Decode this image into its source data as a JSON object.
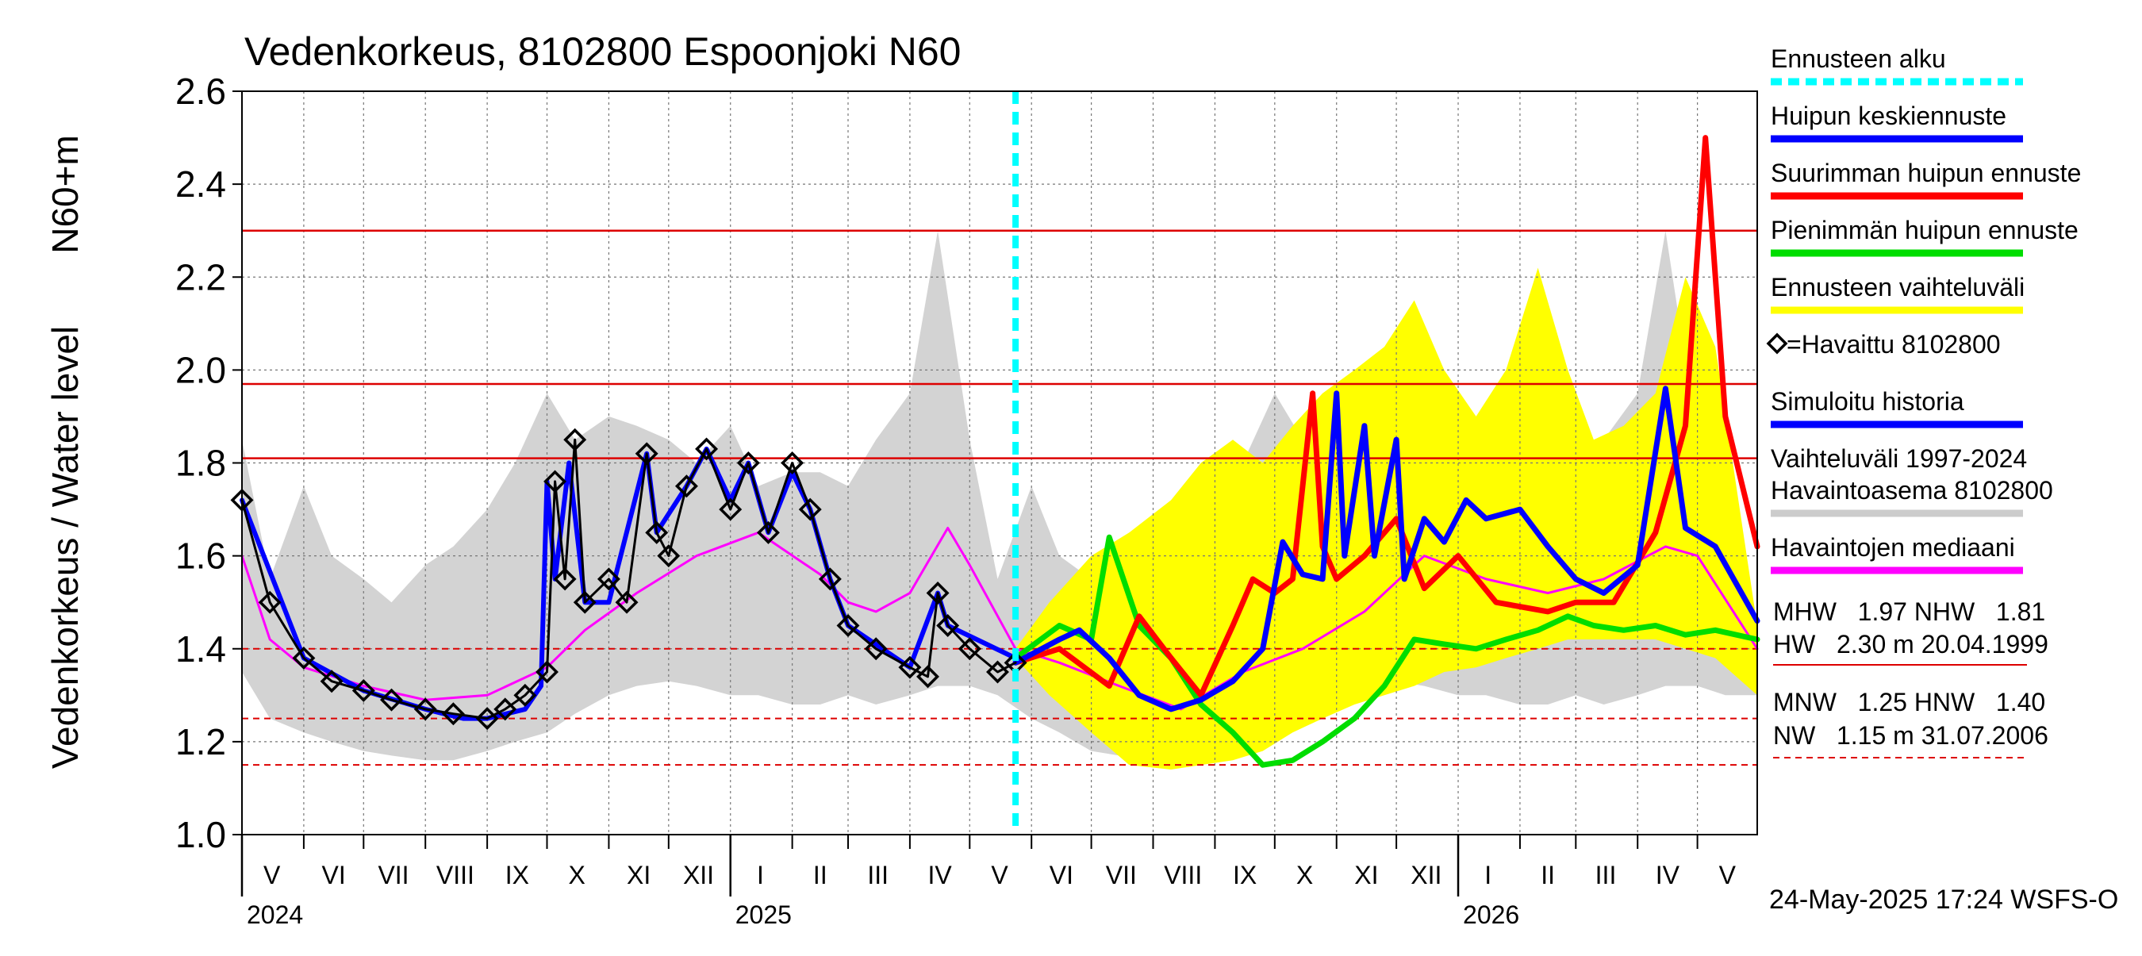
{
  "chart_data": {
    "type": "line",
    "title": "Vedenkorkeus, 8102800 Espoonjoki N60",
    "ylabel_left": "Vedenkorkeus / Water level",
    "ylabel_right": "N60+m",
    "ylim": [
      1.0,
      2.6
    ],
    "yticks": [
      "1.0",
      "1.2",
      "1.4",
      "1.6",
      "1.8",
      "2.0",
      "2.2",
      "2.4",
      "2.6"
    ],
    "x_range": [
      "2024-05-01",
      "2026-05-31"
    ],
    "grid": true,
    "month_labels": [
      {
        "label": "V",
        "date": "2024-05-16"
      },
      {
        "label": "VI",
        "date": "2024-06-16"
      },
      {
        "label": "VII",
        "date": "2024-07-16"
      },
      {
        "label": "VIII",
        "date": "2024-08-16"
      },
      {
        "label": "IX",
        "date": "2024-09-16"
      },
      {
        "label": "X",
        "date": "2024-10-16"
      },
      {
        "label": "XI",
        "date": "2024-11-16"
      },
      {
        "label": "XII",
        "date": "2024-12-16"
      },
      {
        "label": "I",
        "date": "2025-01-16"
      },
      {
        "label": "II",
        "date": "2025-02-15"
      },
      {
        "label": "III",
        "date": "2025-03-16"
      },
      {
        "label": "IV",
        "date": "2025-04-16"
      },
      {
        "label": "V",
        "date": "2025-05-16"
      },
      {
        "label": "VI",
        "date": "2025-06-16"
      },
      {
        "label": "VII",
        "date": "2025-07-16"
      },
      {
        "label": "VIII",
        "date": "2025-08-16"
      },
      {
        "label": "IX",
        "date": "2025-09-16"
      },
      {
        "label": "X",
        "date": "2025-10-16"
      },
      {
        "label": "XI",
        "date": "2025-11-16"
      },
      {
        "label": "XII",
        "date": "2025-12-16"
      },
      {
        "label": "I",
        "date": "2026-01-16"
      },
      {
        "label": "II",
        "date": "2026-02-15"
      },
      {
        "label": "III",
        "date": "2026-03-16"
      },
      {
        "label": "IV",
        "date": "2026-04-16"
      },
      {
        "label": "V",
        "date": "2026-05-16"
      }
    ],
    "year_labels": [
      {
        "label": "2024",
        "date": "2024-05-01"
      },
      {
        "label": "2025",
        "date": "2025-01-01"
      },
      {
        "label": "2026",
        "date": "2026-01-01"
      }
    ],
    "forecast_start": "2025-05-24",
    "reference_lines": [
      {
        "value": 2.3,
        "style": "solid"
      },
      {
        "value": 1.97,
        "style": "solid"
      },
      {
        "value": 1.81,
        "style": "solid"
      },
      {
        "value": 1.4,
        "style": "dashed"
      },
      {
        "value": 1.25,
        "style": "dashed"
      },
      {
        "value": 1.15,
        "style": "dashed"
      }
    ],
    "historical_range": {
      "x": [
        "2024-05-01",
        "2024-05-15",
        "2024-06-01",
        "2024-06-15",
        "2024-07-01",
        "2024-07-15",
        "2024-08-01",
        "2024-08-15",
        "2024-09-01",
        "2024-09-15",
        "2024-10-01",
        "2024-10-15",
        "2024-11-01",
        "2024-11-15",
        "2024-12-01",
        "2024-12-15",
        "2025-01-01",
        "2025-01-15",
        "2025-02-01",
        "2025-02-15",
        "2025-03-01",
        "2025-03-15",
        "2025-04-01",
        "2025-04-15",
        "2025-05-01",
        "2025-05-15",
        "2025-06-01",
        "2025-06-15",
        "2025-07-01",
        "2025-07-15",
        "2025-08-01",
        "2025-08-15",
        "2025-09-01",
        "2025-09-15",
        "2025-10-01",
        "2025-10-15",
        "2025-11-01",
        "2025-11-15",
        "2025-12-01",
        "2025-12-15",
        "2026-01-01",
        "2026-01-15",
        "2026-02-01",
        "2026-02-15",
        "2026-03-01",
        "2026-03-15",
        "2026-04-01",
        "2026-04-15",
        "2026-05-01",
        "2026-05-15",
        "2026-05-31"
      ],
      "lower": [
        1.35,
        1.25,
        1.22,
        1.2,
        1.18,
        1.17,
        1.16,
        1.16,
        1.18,
        1.2,
        1.22,
        1.26,
        1.3,
        1.32,
        1.33,
        1.32,
        1.3,
        1.3,
        1.28,
        1.28,
        1.3,
        1.28,
        1.3,
        1.32,
        1.32,
        1.3,
        1.25,
        1.22,
        1.18,
        1.17,
        1.16,
        1.16,
        1.18,
        1.2,
        1.22,
        1.26,
        1.3,
        1.32,
        1.33,
        1.32,
        1.3,
        1.3,
        1.28,
        1.28,
        1.3,
        1.28,
        1.3,
        1.32,
        1.32,
        1.3,
        1.3
      ],
      "upper": [
        1.85,
        1.55,
        1.75,
        1.6,
        1.55,
        1.5,
        1.58,
        1.62,
        1.7,
        1.8,
        1.95,
        1.85,
        1.9,
        1.88,
        1.85,
        1.8,
        1.88,
        1.75,
        1.78,
        1.78,
        1.75,
        1.85,
        1.95,
        2.3,
        1.85,
        1.55,
        1.75,
        1.6,
        1.55,
        1.5,
        1.58,
        1.62,
        1.7,
        1.8,
        1.95,
        1.85,
        1.9,
        1.88,
        1.85,
        1.8,
        1.88,
        1.75,
        1.78,
        1.78,
        1.75,
        1.85,
        1.95,
        2.3,
        1.85,
        1.55,
        1.4
      ]
    },
    "forecast_range": {
      "x": [
        "2025-05-24",
        "2025-06-10",
        "2025-07-01",
        "2025-07-20",
        "2025-08-10",
        "2025-08-25",
        "2025-09-10",
        "2025-09-25",
        "2025-10-10",
        "2025-10-25",
        "2025-11-10",
        "2025-11-25",
        "2025-12-10",
        "2025-12-25",
        "2026-01-10",
        "2026-01-25",
        "2026-02-10",
        "2026-02-25",
        "2026-03-10",
        "2026-03-25",
        "2026-04-10",
        "2026-04-25",
        "2026-05-10",
        "2026-05-31"
      ],
      "lower": [
        1.38,
        1.3,
        1.22,
        1.15,
        1.14,
        1.15,
        1.16,
        1.18,
        1.22,
        1.25,
        1.28,
        1.3,
        1.32,
        1.35,
        1.36,
        1.38,
        1.4,
        1.42,
        1.42,
        1.42,
        1.42,
        1.4,
        1.38,
        1.3
      ],
      "upper": [
        1.4,
        1.5,
        1.6,
        1.65,
        1.72,
        1.8,
        1.85,
        1.8,
        1.88,
        1.95,
        2.0,
        2.05,
        2.15,
        2.0,
        1.9,
        2.0,
        2.22,
        2.0,
        1.85,
        1.88,
        1.95,
        2.2,
        2.05,
        1.45
      ]
    },
    "series": [
      {
        "name": "Havaittu 8102800",
        "color": "#000000",
        "x": [
          "2024-05-01",
          "2024-05-15",
          "2024-06-01",
          "2024-06-15",
          "2024-07-01",
          "2024-07-15",
          "2024-08-01",
          "2024-08-15",
          "2024-09-01",
          "2024-09-10",
          "2024-09-20",
          "2024-10-01",
          "2024-10-05",
          "2024-10-10",
          "2024-10-15",
          "2024-10-20",
          "2024-11-01",
          "2024-11-10",
          "2024-11-20",
          "2024-11-25",
          "2024-12-01",
          "2024-12-10",
          "2024-12-20",
          "2025-01-01",
          "2025-01-10",
          "2025-01-20",
          "2025-02-01",
          "2025-02-10",
          "2025-02-20",
          "2025-03-01",
          "2025-03-15",
          "2025-04-01",
          "2025-04-10",
          "2025-04-15",
          "2025-04-20",
          "2025-05-01",
          "2025-05-15",
          "2025-05-24"
        ],
        "values": [
          1.72,
          1.5,
          1.38,
          1.33,
          1.31,
          1.29,
          1.27,
          1.26,
          1.25,
          1.27,
          1.3,
          1.35,
          1.76,
          1.55,
          1.85,
          1.5,
          1.55,
          1.5,
          1.82,
          1.65,
          1.6,
          1.75,
          1.83,
          1.7,
          1.8,
          1.65,
          1.8,
          1.7,
          1.55,
          1.45,
          1.4,
          1.36,
          1.34,
          1.52,
          1.45,
          1.4,
          1.35,
          1.37
        ]
      },
      {
        "name": "Simuloitu historia",
        "color": "#0000ff",
        "x": [
          "2024-05-01",
          "2024-06-01",
          "2024-07-01",
          "2024-08-01",
          "2024-08-20",
          "2024-09-01",
          "2024-09-20",
          "2024-09-28",
          "2024-10-01",
          "2024-10-05",
          "2024-10-12",
          "2024-10-20",
          "2024-11-01",
          "2024-11-20",
          "2024-11-25",
          "2024-12-10",
          "2024-12-20",
          "2025-01-01",
          "2025-01-10",
          "2025-01-20",
          "2025-02-01",
          "2025-02-10",
          "2025-02-20",
          "2025-03-01",
          "2025-04-01",
          "2025-04-15",
          "2025-04-20",
          "2025-05-24"
        ],
        "values": [
          1.72,
          1.38,
          1.31,
          1.27,
          1.25,
          1.25,
          1.27,
          1.32,
          1.76,
          1.55,
          1.8,
          1.5,
          1.5,
          1.82,
          1.65,
          1.75,
          1.83,
          1.72,
          1.8,
          1.65,
          1.78,
          1.7,
          1.55,
          1.45,
          1.36,
          1.52,
          1.45,
          1.38
        ]
      },
      {
        "name": "Havaintojen mediaani",
        "color": "#ff00ff",
        "x": [
          "2024-05-01",
          "2024-05-15",
          "2024-06-01",
          "2024-07-01",
          "2024-08-01",
          "2024-09-01",
          "2024-10-01",
          "2024-10-20",
          "2024-11-15",
          "2024-12-15",
          "2025-01-15",
          "2025-02-15",
          "2025-03-01",
          "2025-03-15",
          "2025-04-01",
          "2025-04-20",
          "2025-05-01",
          "2025-05-24",
          "2025-06-15",
          "2025-07-15",
          "2025-08-15",
          "2025-09-15",
          "2025-10-15",
          "2025-11-15",
          "2025-12-15",
          "2026-01-15",
          "2026-02-15",
          "2026-03-15",
          "2026-04-15",
          "2026-05-01",
          "2026-05-31"
        ],
        "values": [
          1.6,
          1.42,
          1.36,
          1.32,
          1.29,
          1.3,
          1.36,
          1.44,
          1.52,
          1.6,
          1.65,
          1.56,
          1.5,
          1.48,
          1.52,
          1.66,
          1.58,
          1.4,
          1.37,
          1.32,
          1.27,
          1.35,
          1.4,
          1.48,
          1.6,
          1.55,
          1.52,
          1.55,
          1.62,
          1.6,
          1.4
        ]
      },
      {
        "name": "Huipun keskiennuste",
        "color": "#0000ff",
        "x": [
          "2025-05-24",
          "2025-06-15",
          "2025-06-25",
          "2025-07-10",
          "2025-07-25",
          "2025-08-10",
          "2025-08-25",
          "2025-09-10",
          "2025-09-25",
          "2025-10-05",
          "2025-10-15",
          "2025-10-25",
          "2025-11-01",
          "2025-11-05",
          "2025-11-15",
          "2025-11-20",
          "2025-12-01",
          "2025-12-05",
          "2025-12-15",
          "2025-12-25",
          "2026-01-05",
          "2026-01-15",
          "2026-02-01",
          "2026-02-15",
          "2026-03-01",
          "2026-03-15",
          "2026-04-01",
          "2026-04-15",
          "2026-04-25",
          "2026-05-10",
          "2026-05-31"
        ],
        "values": [
          1.37,
          1.42,
          1.44,
          1.38,
          1.3,
          1.27,
          1.29,
          1.33,
          1.4,
          1.63,
          1.56,
          1.55,
          1.95,
          1.6,
          1.88,
          1.6,
          1.85,
          1.55,
          1.68,
          1.63,
          1.72,
          1.68,
          1.7,
          1.62,
          1.55,
          1.52,
          1.58,
          1.96,
          1.66,
          1.62,
          1.46
        ]
      },
      {
        "name": "Suurimman huipun ennuste",
        "color": "#ff0000",
        "x": [
          "2025-05-24",
          "2025-06-15",
          "2025-07-10",
          "2025-07-25",
          "2025-08-10",
          "2025-08-25",
          "2025-09-10",
          "2025-09-20",
          "2025-10-01",
          "2025-10-10",
          "2025-10-20",
          "2025-10-25",
          "2025-11-01",
          "2025-11-15",
          "2025-12-01",
          "2025-12-15",
          "2026-01-01",
          "2026-01-20",
          "2026-02-15",
          "2026-03-01",
          "2026-03-20",
          "2026-04-10",
          "2026-04-25",
          "2026-05-05",
          "2026-05-15",
          "2026-05-31"
        ],
        "values": [
          1.37,
          1.4,
          1.32,
          1.47,
          1.38,
          1.3,
          1.45,
          1.55,
          1.52,
          1.55,
          1.95,
          1.62,
          1.55,
          1.6,
          1.68,
          1.53,
          1.6,
          1.5,
          1.48,
          1.5,
          1.5,
          1.65,
          1.88,
          2.5,
          1.9,
          1.62
        ]
      },
      {
        "name": "Pienimmän huipun ennuste",
        "color": "#00dd00",
        "x": [
          "2025-05-24",
          "2025-06-15",
          "2025-07-01",
          "2025-07-10",
          "2025-07-25",
          "2025-08-10",
          "2025-08-25",
          "2025-09-10",
          "2025-09-25",
          "2025-10-10",
          "2025-10-25",
          "2025-11-10",
          "2025-11-25",
          "2025-12-10",
          "2025-12-25",
          "2026-01-10",
          "2026-01-25",
          "2026-02-10",
          "2026-02-25",
          "2026-03-10",
          "2026-03-25",
          "2026-04-10",
          "2026-04-25",
          "2026-05-10",
          "2026-05-31"
        ],
        "values": [
          1.38,
          1.45,
          1.42,
          1.64,
          1.45,
          1.38,
          1.28,
          1.22,
          1.15,
          1.16,
          1.2,
          1.25,
          1.32,
          1.42,
          1.41,
          1.4,
          1.42,
          1.44,
          1.47,
          1.45,
          1.44,
          1.45,
          1.43,
          1.44,
          1.42
        ]
      }
    ],
    "legend": {
      "placement": "right",
      "items": [
        {
          "label": "Ennusteen alku",
          "color": "#00ffff",
          "style": "dashed"
        },
        {
          "label": "Huipun keskiennuste",
          "color": "#0000ff",
          "style": "line"
        },
        {
          "label": "Suurimman huipun ennuste",
          "color": "#ff0000",
          "style": "line"
        },
        {
          "label": "Pienimmän huipun ennuste",
          "color": "#00dd00",
          "style": "line"
        },
        {
          "label": "Ennusteen vaihteluväli",
          "color": "#ffff00",
          "style": "line"
        },
        {
          "label": "=Havaittu 8102800",
          "color": "#000000",
          "style": "diamond"
        },
        {
          "label": "Simuloitu historia",
          "color": "#0000ff",
          "style": "line"
        },
        {
          "label": "Vaihteluväli 1997-2024",
          "label2": " Havaintoasema 8102800",
          "color": "#cccccc",
          "style": "line"
        },
        {
          "label": "Havaintojen mediaani",
          "color": "#ff00ff",
          "style": "line"
        }
      ]
    },
    "stats": {
      "line1": "MHW   1.97 NHW   1.81",
      "line2": "HW   2.30 m 20.04.1999",
      "line3": "MNW   1.25 HNW   1.40",
      "line4": "NW   1.15 m 31.07.2006"
    },
    "timestamp": "24-May-2025 17:24 WSFS-O",
    "colors": {
      "historical_range": "#d3d3d3",
      "forecast_range": "#ffff00",
      "reference_line": "#dd0000",
      "forecast_start": "#00ffff",
      "grid": "#777777"
    }
  }
}
